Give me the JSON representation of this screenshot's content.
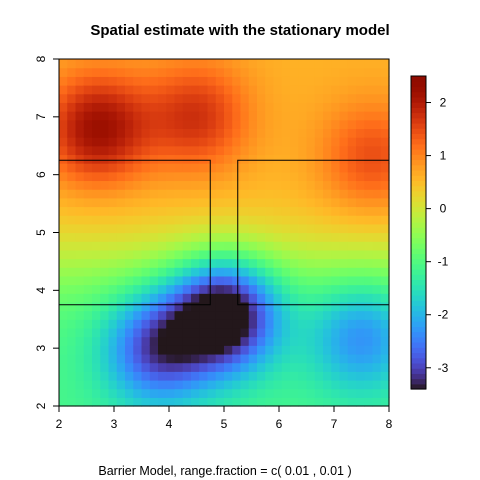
{
  "chart_data": {
    "type": "heatmap",
    "title": "Spatial estimate with the stationary model",
    "xlabel": "Barrier Model, range.fraction = c( 0.01 ,  0.01 )",
    "ylabel": "",
    "xlim": [
      2,
      8
    ],
    "ylim": [
      2,
      8
    ],
    "x_ticks": [
      "2",
      "3",
      "4",
      "5",
      "6",
      "7",
      "8"
    ],
    "y_ticks": [
      "2",
      "3",
      "4",
      "5",
      "6",
      "7",
      "8"
    ],
    "colorbar": {
      "range": [
        -3.4,
        2.5
      ],
      "ticks": [
        "-3",
        "-2",
        "-1",
        "0",
        "1",
        "2"
      ],
      "colormap": "turbo"
    },
    "grid": false,
    "barrier": {
      "upper_left": [
        [
          2,
          6.25
        ],
        [
          4.75,
          6.25
        ],
        [
          4.75,
          3.75
        ],
        [
          2,
          3.75
        ]
      ],
      "upper_right": [
        [
          8,
          6.25
        ],
        [
          5.25,
          6.25
        ],
        [
          5.25,
          3.75
        ],
        [
          8,
          3.75
        ]
      ]
    },
    "field_features": [
      {
        "x": 2.7,
        "y": 6.8,
        "value": 2.4
      },
      {
        "x": 4.5,
        "y": 7.0,
        "value": 1.8
      },
      {
        "x": 7.7,
        "y": 6.3,
        "value": 1.5
      },
      {
        "x": 5.0,
        "y": 3.6,
        "value": -3.3
      },
      {
        "x": 3.8,
        "y": 3.0,
        "value": -2.0
      },
      {
        "x": 7.5,
        "y": 3.2,
        "value": -1.2
      }
    ]
  }
}
